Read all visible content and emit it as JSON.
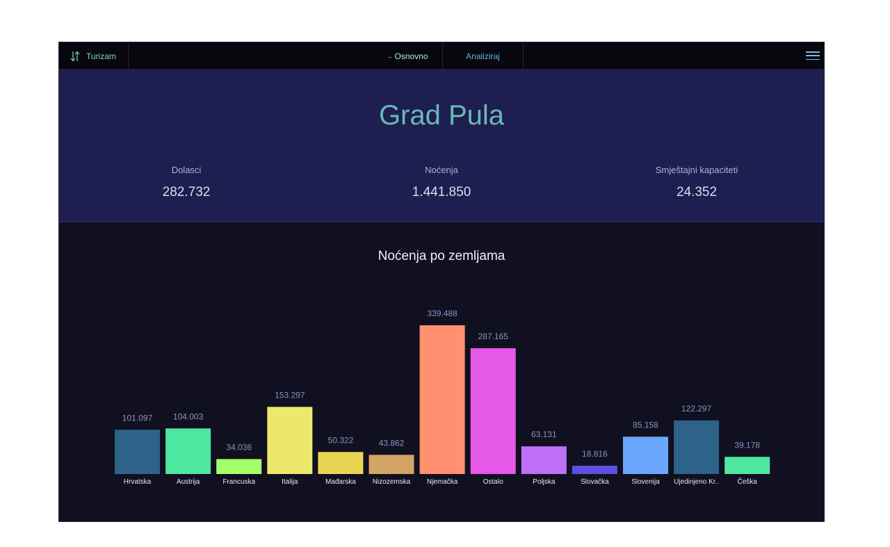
{
  "nav": {
    "brand": "Turizam",
    "tabs": [
      {
        "arrow": "→",
        "label": "Osnovno"
      },
      {
        "label": "Analiziraj"
      }
    ]
  },
  "hero": {
    "title": "Grad Pula",
    "stats": [
      {
        "label": "Dolasci",
        "value": "282.732"
      },
      {
        "label": "Noćenja",
        "value": "1.441.850"
      },
      {
        "label": "Smještajni kapaciteti",
        "value": "24.352"
      }
    ]
  },
  "chart_data": {
    "type": "bar",
    "title": "Noćenja po zemljama",
    "categories": [
      "Hrvatska",
      "Austrija",
      "Francuska",
      "Italija",
      "Mađarska",
      "Nizozemska",
      "Njemačka",
      "Ostalo",
      "Poljska",
      "Slovačka",
      "Slovenija",
      "Ujedinjeno Kr..",
      "Češka"
    ],
    "values": [
      101097,
      104003,
      34036,
      153297,
      50322,
      43862,
      339488,
      287165,
      63131,
      18816,
      85158,
      122297,
      39178
    ],
    "value_labels": [
      "101.097",
      "104.003",
      "34.036",
      "153.297",
      "50.322",
      "43.862",
      "339.488",
      "287.165",
      "63.131",
      "18.816",
      "85.158",
      "122.297",
      "39.178"
    ],
    "colors": [
      "#2e6389",
      "#4fe6a0",
      "#a4ff6a",
      "#ece86c",
      "#ead454",
      "#d4a466",
      "#ff9170",
      "#e658e8",
      "#c070f8",
      "#5d50e0",
      "#6aa8fe",
      "#2e6389",
      "#4fe6a0"
    ],
    "xlabel": "",
    "ylabel": "",
    "ylim": [
      0,
      339488
    ],
    "grid": false,
    "legend": "none"
  }
}
